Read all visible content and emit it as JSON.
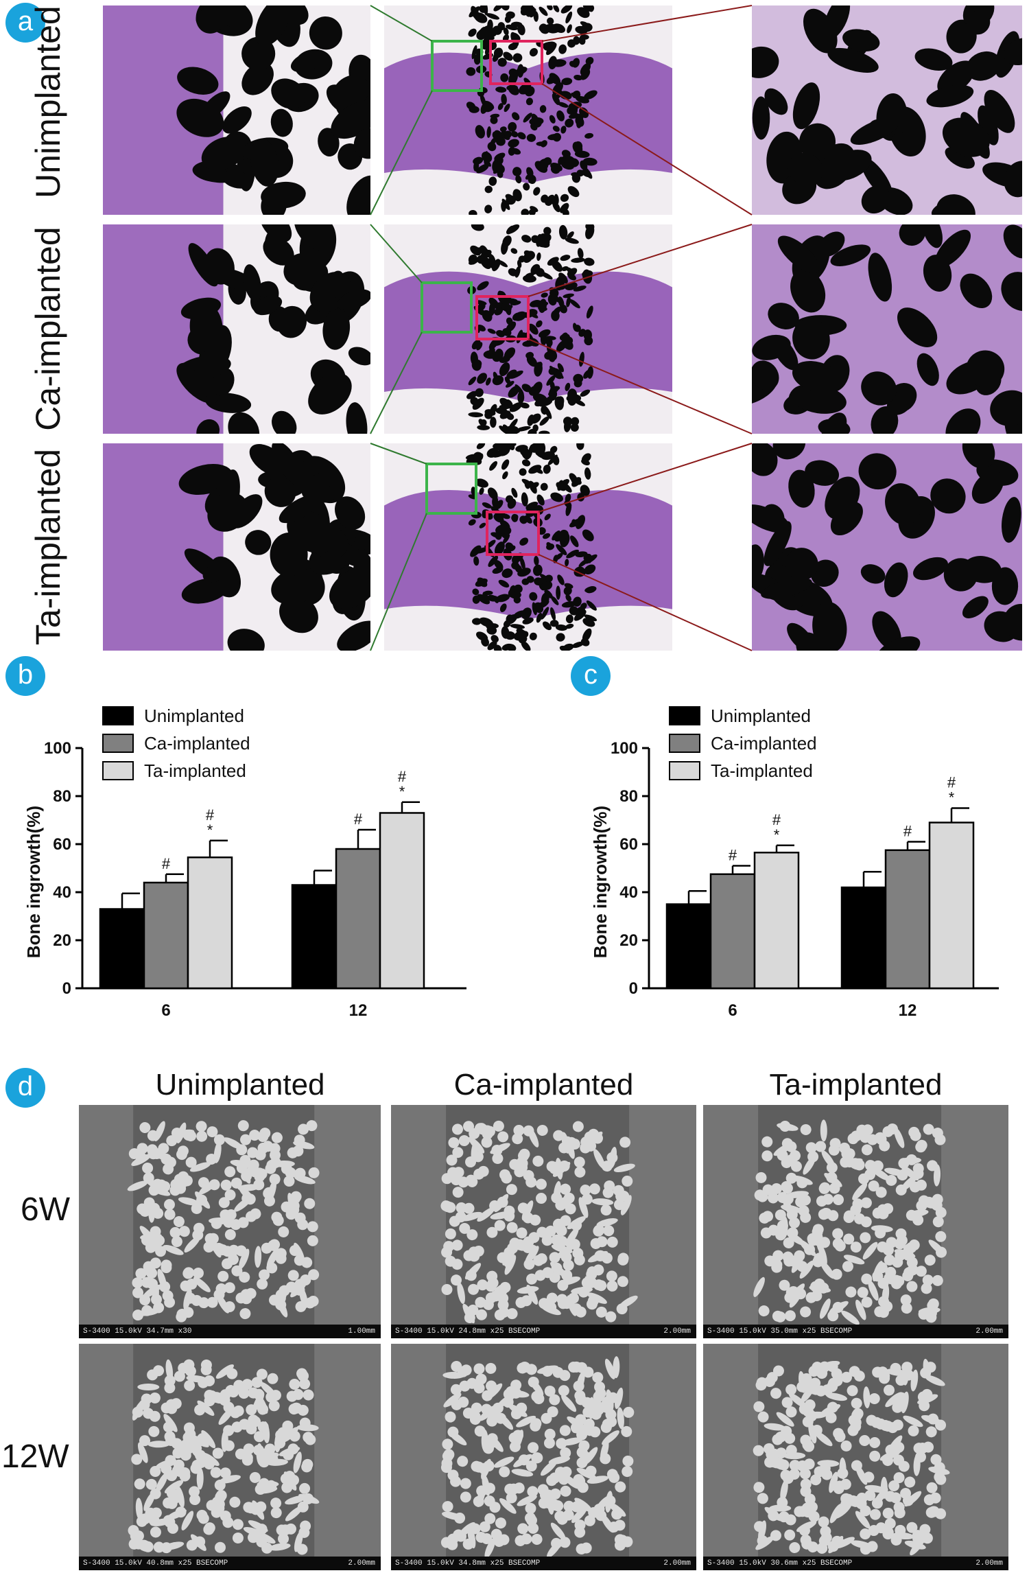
{
  "panels": {
    "a": "a",
    "b": "b",
    "c": "c",
    "d": "d"
  },
  "histology": {
    "rows": [
      "Unimplanted",
      "Ca-implanted",
      "Ta-implanted"
    ]
  },
  "colors": {
    "badge": "#1aa3dc",
    "bone_stain": "#8a4bb0",
    "implant": "#0a0a0a",
    "green_box": "#3cb44a",
    "red_box": "#e0245e",
    "series": [
      "#000000",
      "#808080",
      "#d9d9d9"
    ]
  },
  "chart_data": [
    {
      "type": "bar",
      "panel": "b",
      "categories": [
        "6",
        "12"
      ],
      "series": [
        {
          "name": "Unimplanted",
          "values": [
            33,
            43
          ],
          "errors": [
            6.5,
            6
          ]
        },
        {
          "name": "Ca-implanted",
          "values": [
            44,
            58
          ],
          "errors": [
            3.5,
            8
          ]
        },
        {
          "name": "Ta-implanted",
          "values": [
            54.5,
            73
          ],
          "errors": [
            7,
            4.5
          ]
        }
      ],
      "annotations": [
        {
          "category": 0,
          "series": 1,
          "marks": [
            "#"
          ]
        },
        {
          "category": 0,
          "series": 2,
          "marks": [
            "#",
            "*"
          ]
        },
        {
          "category": 1,
          "series": 1,
          "marks": [
            "#"
          ]
        },
        {
          "category": 1,
          "series": 2,
          "marks": [
            "#",
            "*"
          ]
        }
      ],
      "xlabel": "",
      "ylabel": "Bone ingrowth(%)",
      "ylim": [
        0,
        100
      ],
      "yticks": [
        "0",
        "20",
        "40",
        "60",
        "80",
        "100"
      ],
      "legend": "top-left"
    },
    {
      "type": "bar",
      "panel": "c",
      "categories": [
        "6",
        "12"
      ],
      "series": [
        {
          "name": "Unimplanted",
          "values": [
            35,
            42
          ],
          "errors": [
            5.5,
            6.5
          ]
        },
        {
          "name": "Ca-implanted",
          "values": [
            47.5,
            57.5
          ],
          "errors": [
            3.5,
            3.5
          ]
        },
        {
          "name": "Ta-implanted",
          "values": [
            56.5,
            69
          ],
          "errors": [
            3,
            6
          ]
        }
      ],
      "annotations": [
        {
          "category": 0,
          "series": 1,
          "marks": [
            "#"
          ]
        },
        {
          "category": 0,
          "series": 2,
          "marks": [
            "#",
            "*"
          ]
        },
        {
          "category": 1,
          "series": 1,
          "marks": [
            "#"
          ]
        },
        {
          "category": 1,
          "series": 2,
          "marks": [
            "#",
            "*"
          ]
        }
      ],
      "xlabel": "",
      "ylabel": "Bone ingrowth(%)",
      "ylim": [
        0,
        100
      ],
      "yticks": [
        "0",
        "20",
        "40",
        "60",
        "80",
        "100"
      ],
      "legend": "top-left"
    }
  ],
  "sem": {
    "columns": [
      "Unimplanted",
      "Ca-implanted",
      "Ta-implanted"
    ],
    "rows": [
      "6W",
      "12W"
    ],
    "info": [
      [
        "S-3400 15.0kV 34.7mm x30",
        "S-3400 15.0kV 24.8mm x25 BSECOMP",
        "S-3400 15.0kV 35.0mm x25 BSECOMP"
      ],
      [
        "S-3400 15.0kV 40.8mm x25 BSECOMP",
        "S-3400 15.0kV 34.8mm x25 BSECOMP",
        "S-3400 15.0kV 30.6mm x25 BSECOMP"
      ]
    ],
    "scale": [
      [
        "1.00mm",
        "2.00mm",
        "2.00mm"
      ],
      [
        "2.00mm",
        "2.00mm",
        "2.00mm"
      ]
    ]
  }
}
